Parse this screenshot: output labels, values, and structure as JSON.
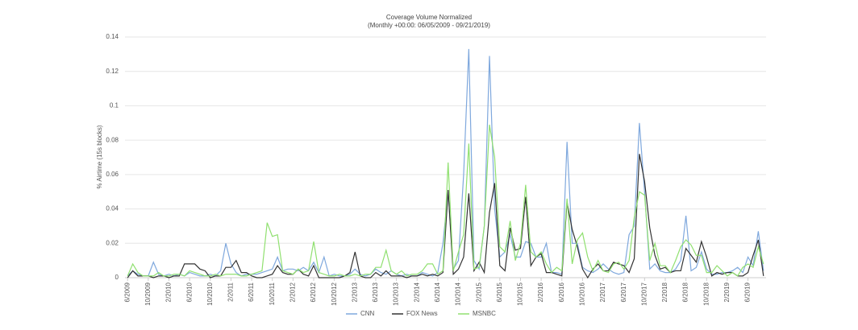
{
  "chart_data": {
    "type": "line",
    "title": "Coverage Volume Normalized",
    "subtitle": "(Monthly +00:00: 06/05/2009 - 09/21/2019)",
    "y_label": "% Airtime (15s blocks)",
    "categories": [
      "6/2009",
      null,
      null,
      null,
      "10/2009",
      null,
      null,
      null,
      "2/2010",
      null,
      null,
      null,
      "6/2010",
      null,
      null,
      null,
      "10/2010",
      null,
      null,
      null,
      "2/2011",
      null,
      null,
      null,
      "6/2011",
      null,
      null,
      null,
      "10/2011",
      null,
      null,
      null,
      "2/2012",
      null,
      null,
      null,
      "6/2012",
      null,
      null,
      null,
      "10/2012",
      null,
      null,
      null,
      "2/2013",
      null,
      null,
      null,
      "6/2013",
      null,
      null,
      null,
      "10/2013",
      null,
      null,
      null,
      "2/2014",
      null,
      null,
      null,
      "6/2014",
      null,
      null,
      null,
      "10/2014",
      null,
      null,
      null,
      "2/2015",
      null,
      null,
      null,
      "6/2015",
      null,
      null,
      null,
      "10/2015",
      null,
      null,
      null,
      "2/2016",
      null,
      null,
      null,
      "6/2016",
      null,
      null,
      null,
      "10/2016",
      null,
      null,
      null,
      "2/2017",
      null,
      null,
      null,
      "6/2017",
      null,
      null,
      null,
      "10/2017",
      null,
      null,
      null,
      "2/2018",
      null,
      null,
      null,
      "6/2018",
      null,
      null,
      null,
      "10/2018",
      null,
      null,
      null,
      "2/2019",
      null,
      null,
      null,
      "6/2019",
      null,
      null,
      null
    ],
    "series": [
      {
        "name": "CNN",
        "color": "#7fa8dd",
        "values": [
          0.001,
          0.004,
          0.002,
          0.001,
          0.001,
          0.009,
          0.002,
          0.001,
          0.002,
          0.001,
          0.002,
          0.001,
          0.003,
          0.002,
          0.001,
          0.001,
          0.002,
          0.001,
          0.004,
          0.02,
          0.008,
          0.003,
          0.001,
          0.002,
          0.002,
          0.002,
          0.003,
          0.004,
          0.005,
          0.012,
          0.004,
          0.005,
          0.005,
          0.004,
          0.006,
          0.004,
          0.009,
          0.003,
          0.012,
          0.001,
          0.002,
          0.001,
          0.001,
          0.002,
          0.005,
          0.002,
          0.001,
          0.002,
          0.005,
          0.003,
          0.002,
          0.004,
          0.002,
          0.001,
          0.002,
          0.001,
          0.001,
          0.003,
          0.002,
          0.001,
          0.003,
          0.02,
          0.05,
          0.005,
          0.01,
          0.06,
          0.133,
          0.01,
          0.005,
          0.03,
          0.129,
          0.04,
          0.012,
          0.015,
          0.025,
          0.012,
          0.012,
          0.021,
          0.02,
          0.012,
          0.012,
          0.02,
          0.003,
          0.003,
          0.002,
          0.079,
          0.02,
          0.02,
          0.006,
          0.004,
          0.003,
          0.005,
          0.008,
          0.005,
          0.003,
          0.002,
          0.003,
          0.025,
          0.03,
          0.09,
          0.05,
          0.005,
          0.008,
          0.004,
          0.003,
          0.003,
          0.005,
          0.01,
          0.036,
          0.004,
          0.006,
          0.015,
          0.005,
          0.002,
          0.002,
          0.003,
          0.003,
          0.004,
          0.006,
          0.003,
          0.012,
          0.007,
          0.027,
          0.004
        ]
      },
      {
        "name": "FOX News",
        "color": "#333333",
        "values": [
          0.0,
          0.004,
          0.001,
          0.001,
          0.001,
          0.0,
          0.001,
          0.001,
          0.0,
          0.001,
          0.001,
          0.008,
          0.008,
          0.008,
          0.005,
          0.004,
          0.0,
          0.001,
          0.001,
          0.006,
          0.006,
          0.01,
          0.003,
          0.003,
          0.001,
          0.0,
          0.0,
          0.001,
          0.002,
          0.007,
          0.003,
          0.002,
          0.002,
          0.005,
          0.002,
          0.001,
          0.007,
          0.0,
          0.0,
          0.0,
          0.0,
          0.0,
          0.001,
          0.003,
          0.015,
          0.001,
          0.0,
          0.0,
          0.003,
          0.001,
          0.004,
          0.001,
          0.001,
          0.001,
          0.0,
          0.001,
          0.001,
          0.002,
          0.001,
          0.002,
          0.001,
          0.003,
          0.051,
          0.002,
          0.005,
          0.012,
          0.049,
          0.004,
          0.009,
          0.003,
          0.038,
          0.055,
          0.007,
          0.004,
          0.029,
          0.016,
          0.017,
          0.047,
          0.007,
          0.012,
          0.014,
          0.003,
          0.003,
          0.002,
          0.001,
          0.044,
          0.028,
          0.018,
          0.005,
          0.0,
          0.005,
          0.008,
          0.004,
          0.004,
          0.009,
          0.008,
          0.007,
          0.003,
          0.011,
          0.072,
          0.056,
          0.029,
          0.013,
          0.005,
          0.006,
          0.003,
          0.004,
          0.004,
          0.017,
          0.013,
          0.009,
          0.021,
          0.012,
          0.001,
          0.003,
          0.002,
          0.003,
          0.003,
          0.001,
          0.001,
          0.003,
          0.013,
          0.022,
          0.001
        ]
      },
      {
        "name": "MSNBC",
        "color": "#90e070",
        "values": [
          0.001,
          0.008,
          0.003,
          0.001,
          0.001,
          0.001,
          0.003,
          0.001,
          0.001,
          0.002,
          0.002,
          0.001,
          0.004,
          0.003,
          0.002,
          0.001,
          0.001,
          0.002,
          0.001,
          0.002,
          0.002,
          0.002,
          0.001,
          0.001,
          0.002,
          0.003,
          0.004,
          0.032,
          0.024,
          0.025,
          0.004,
          0.003,
          0.002,
          0.005,
          0.003,
          0.004,
          0.021,
          0.003,
          0.002,
          0.001,
          0.001,
          0.002,
          0.001,
          0.001,
          0.002,
          0.001,
          0.002,
          0.002,
          0.006,
          0.006,
          0.016,
          0.004,
          0.002,
          0.004,
          0.001,
          0.002,
          0.002,
          0.004,
          0.008,
          0.008,
          0.002,
          0.004,
          0.067,
          0.004,
          0.015,
          0.025,
          0.078,
          0.005,
          0.006,
          0.03,
          0.089,
          0.07,
          0.018,
          0.015,
          0.033,
          0.01,
          0.02,
          0.054,
          0.015,
          0.012,
          0.015,
          0.008,
          0.003,
          0.006,
          0.004,
          0.046,
          0.008,
          0.022,
          0.026,
          0.012,
          0.004,
          0.01,
          0.004,
          0.003,
          0.008,
          0.009,
          0.005,
          0.01,
          0.035,
          0.05,
          0.048,
          0.01,
          0.02,
          0.007,
          0.007,
          0.003,
          0.01,
          0.018,
          0.022,
          0.019,
          0.013,
          0.013,
          0.003,
          0.003,
          0.007,
          0.004,
          0.001,
          0.003,
          0.001,
          0.006,
          0.008,
          0.006,
          0.018,
          0.008
        ]
      }
    ],
    "ylim": [
      0,
      0.14
    ],
    "yticks": [
      0,
      0.02,
      0.04,
      0.06,
      0.08,
      0.1,
      0.12,
      0.14
    ],
    "grid": true,
    "legend": "bottom"
  }
}
